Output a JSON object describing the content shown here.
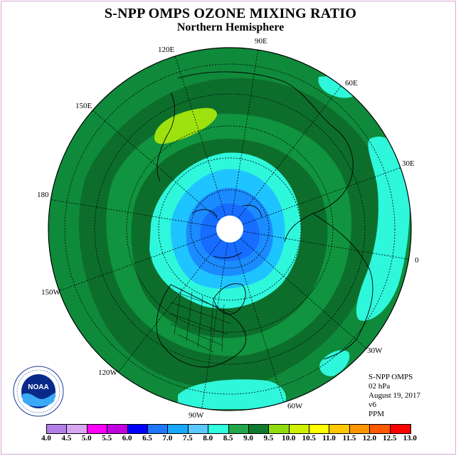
{
  "title": "S-NPP OMPS OZONE MIXING RATIO",
  "subtitle": "Northern Hemisphere",
  "longitude_labels": [
    "90E",
    "60E",
    "30E",
    "0",
    "30W",
    "60W",
    "90W",
    "120W",
    "150W",
    "180",
    "150E",
    "120E"
  ],
  "info": {
    "instrument": "S-NPP OMPS",
    "level": "02 hPa",
    "date": "August 19, 2017",
    "version": "v6",
    "units": "PPM"
  },
  "logo": {
    "text": "NOAA",
    "name": "noaa-logo"
  },
  "colorbar": {
    "ticks": [
      "4.0",
      "4.5",
      "5.0",
      "5.5",
      "6.0",
      "6.5",
      "7.0",
      "7.5",
      "8.0",
      "8.5",
      "9.0",
      "9.5",
      "10.0",
      "10.5",
      "11.0",
      "11.5",
      "12.0",
      "12.5",
      "13.0"
    ],
    "colors": [
      "#b57fe8",
      "#d9a6f2",
      "#ff00ff",
      "#c000e0",
      "#0000ff",
      "#1e78ff",
      "#18a8ff",
      "#5cc8ff",
      "#30ffe0",
      "#22a84a",
      "#0f7a30",
      "#90dc10",
      "#d0f000",
      "#ffff00",
      "#ffc800",
      "#ff9600",
      "#ff5a00",
      "#ff0000",
      "#8b5a3c"
    ]
  },
  "map_colors": {
    "outer": "#0f8a3a",
    "band_dark": "#0d6e2c",
    "band_mid": "#10943f",
    "cyan": "#2ef7dc",
    "light_blue": "#1ec4ff",
    "mid_blue": "#1a8cff",
    "inner_blue": "#166dff",
    "lime": "#9de20e"
  }
}
